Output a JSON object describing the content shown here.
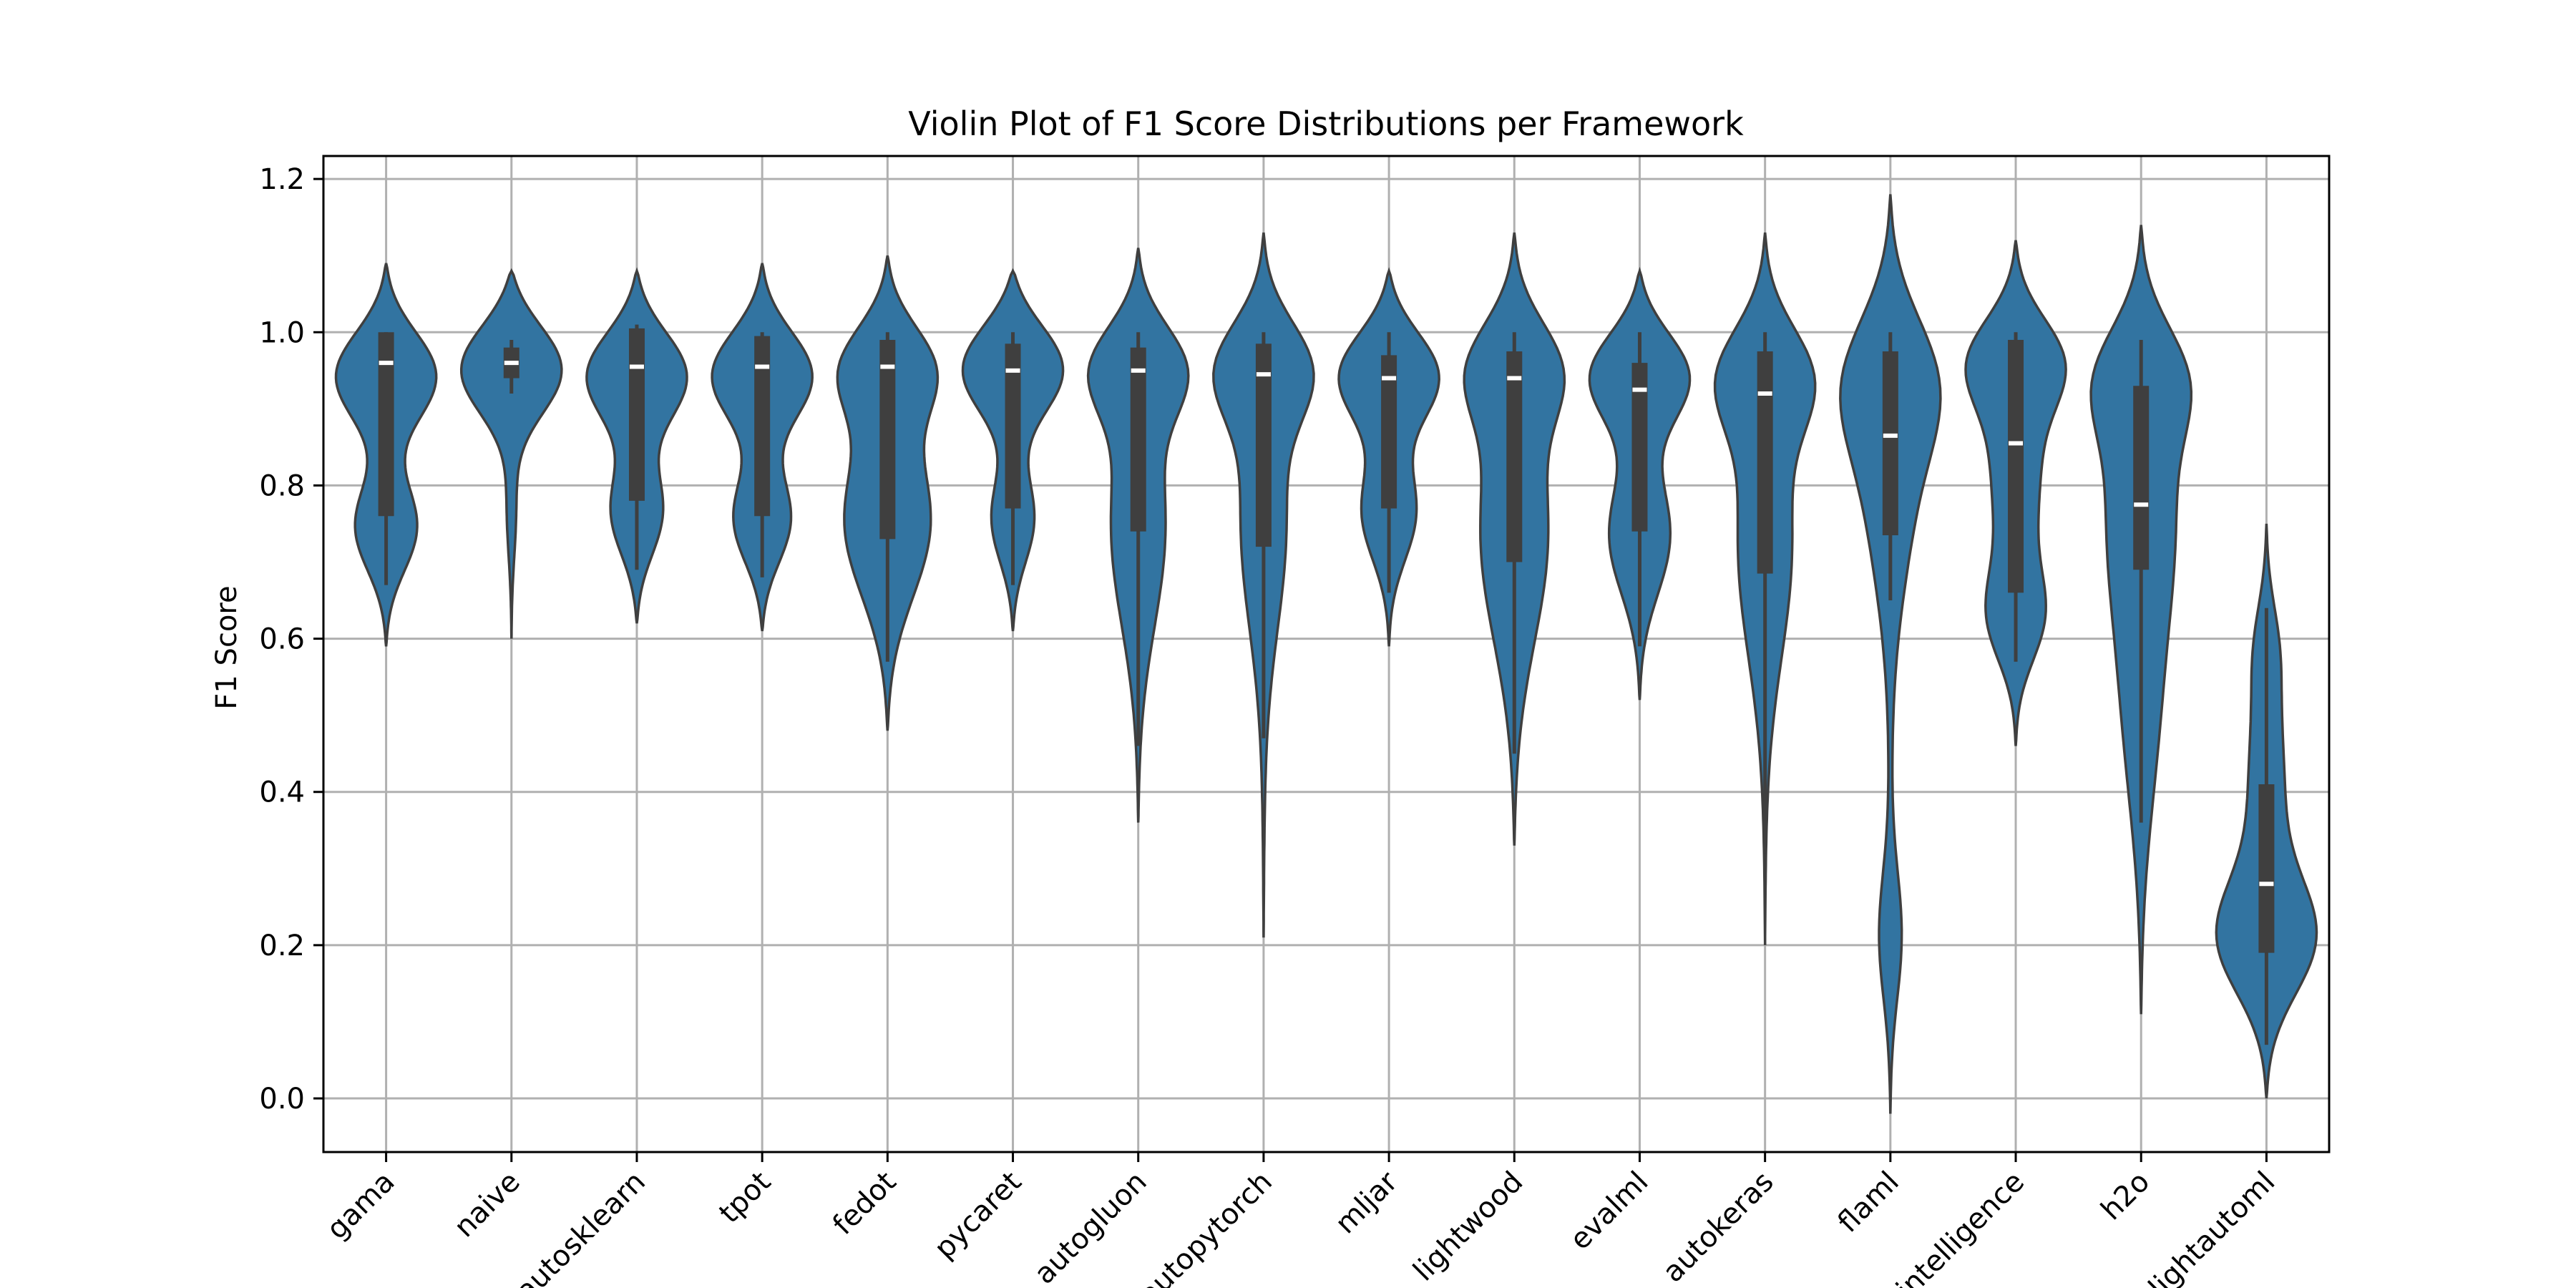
{
  "chart_data": {
    "type": "violin",
    "title": "Violin Plot of F1 Score Distributions per Framework",
    "xlabel": "",
    "ylabel": "F1 Score",
    "ylim": [
      -0.07,
      1.23
    ],
    "yticks": [
      "0.0",
      "0.2",
      "0.4",
      "0.6",
      "0.8",
      "1.0",
      "1.2"
    ],
    "grid": true,
    "color": "#3274a1",
    "categories": [
      "gama",
      "naive",
      "autosklearn",
      "tpot",
      "fedot",
      "pycaret",
      "autogluon",
      "autopytorch",
      "mljar",
      "lightwood",
      "evalml",
      "autokeras",
      "flaml",
      "autointelligence",
      "h2o",
      "lightautoml"
    ],
    "series": [
      {
        "min": 0.59,
        "max": 1.09,
        "whisker_low": 0.67,
        "whisker_high": 1.0,
        "q1": 0.76,
        "median": 0.96,
        "q3": 1.0,
        "modes": [
          [
            0.95,
            0.3
          ],
          [
            0.74,
            0.18
          ]
        ]
      },
      {
        "min": 0.6,
        "max": 1.08,
        "whisker_low": 0.92,
        "whisker_high": 0.99,
        "q1": 0.94,
        "median": 0.96,
        "q3": 0.98,
        "modes": [
          [
            0.96,
            0.4
          ],
          [
            0.76,
            0.03
          ]
        ]
      },
      {
        "min": 0.62,
        "max": 1.08,
        "whisker_low": 0.69,
        "whisker_high": 1.01,
        "q1": 0.78,
        "median": 0.955,
        "q3": 1.005,
        "modes": [
          [
            0.95,
            0.28
          ],
          [
            0.76,
            0.14
          ]
        ]
      },
      {
        "min": 0.61,
        "max": 1.09,
        "whisker_low": 0.68,
        "whisker_high": 1.0,
        "q1": 0.76,
        "median": 0.955,
        "q3": 0.995,
        "modes": [
          [
            0.95,
            0.3
          ],
          [
            0.75,
            0.17
          ]
        ]
      },
      {
        "min": 0.48,
        "max": 1.1,
        "whisker_low": 0.57,
        "whisker_high": 1.0,
        "q1": 0.73,
        "median": 0.955,
        "q3": 0.99,
        "modes": [
          [
            0.96,
            0.22
          ],
          [
            0.75,
            0.18
          ]
        ]
      },
      {
        "min": 0.61,
        "max": 1.08,
        "whisker_low": 0.67,
        "whisker_high": 1.0,
        "q1": 0.77,
        "median": 0.95,
        "q3": 0.985,
        "modes": [
          [
            0.96,
            0.3
          ],
          [
            0.75,
            0.12
          ]
        ]
      },
      {
        "min": 0.36,
        "max": 1.11,
        "whisker_low": 0.46,
        "whisker_high": 1.0,
        "q1": 0.74,
        "median": 0.95,
        "q3": 0.98,
        "modes": [
          [
            0.96,
            0.2
          ],
          [
            0.75,
            0.1
          ]
        ]
      },
      {
        "min": 0.21,
        "max": 1.13,
        "whisker_low": 0.47,
        "whisker_high": 1.0,
        "q1": 0.72,
        "median": 0.945,
        "q3": 0.985,
        "modes": [
          [
            0.96,
            0.15
          ],
          [
            0.76,
            0.06
          ]
        ]
      },
      {
        "min": 0.59,
        "max": 1.08,
        "whisker_low": 0.66,
        "whisker_high": 1.0,
        "q1": 0.77,
        "median": 0.94,
        "q3": 0.97,
        "modes": [
          [
            0.95,
            0.3
          ],
          [
            0.76,
            0.15
          ]
        ]
      },
      {
        "min": 0.33,
        "max": 1.13,
        "whisker_low": 0.45,
        "whisker_high": 1.0,
        "q1": 0.7,
        "median": 0.94,
        "q3": 0.975,
        "modes": [
          [
            0.96,
            0.16
          ],
          [
            0.74,
            0.11
          ]
        ]
      },
      {
        "min": 0.52,
        "max": 1.08,
        "whisker_low": 0.59,
        "whisker_high": 1.0,
        "q1": 0.74,
        "median": 0.925,
        "q3": 0.96,
        "modes": [
          [
            0.95,
            0.3
          ],
          [
            0.73,
            0.16
          ]
        ]
      },
      {
        "min": 0.2,
        "max": 1.13,
        "whisker_low": 0.32,
        "whisker_high": 1.0,
        "q1": 0.685,
        "median": 0.92,
        "q3": 0.975,
        "modes": [
          [
            0.95,
            0.16
          ],
          [
            0.73,
            0.08
          ]
        ]
      },
      {
        "min": -0.02,
        "max": 1.18,
        "whisker_low": 0.65,
        "whisker_high": 1.0,
        "q1": 0.735,
        "median": 0.865,
        "q3": 0.975,
        "modes": [
          [
            0.95,
            0.13
          ],
          [
            0.82,
            0.07
          ],
          [
            0.2,
            0.04
          ]
        ]
      },
      {
        "min": 0.46,
        "max": 1.12,
        "whisker_low": 0.57,
        "whisker_high": 1.0,
        "q1": 0.66,
        "median": 0.855,
        "q3": 0.99,
        "modes": [
          [
            0.97,
            0.17
          ],
          [
            0.82,
            0.08
          ],
          [
            0.62,
            0.1
          ]
        ]
      },
      {
        "min": 0.11,
        "max": 1.14,
        "whisker_low": 0.36,
        "whisker_high": 0.99,
        "q1": 0.69,
        "median": 0.775,
        "q3": 0.93,
        "modes": [
          [
            0.95,
            0.12
          ],
          [
            0.78,
            0.08
          ],
          [
            0.5,
            0.04
          ]
        ]
      },
      {
        "min": 0.0,
        "max": 0.75,
        "whisker_low": 0.07,
        "whisker_high": 0.64,
        "q1": 0.19,
        "median": 0.28,
        "q3": 0.41,
        "modes": [
          [
            0.2,
            0.22
          ],
          [
            0.42,
            0.07
          ],
          [
            0.6,
            0.04
          ]
        ]
      }
    ]
  }
}
